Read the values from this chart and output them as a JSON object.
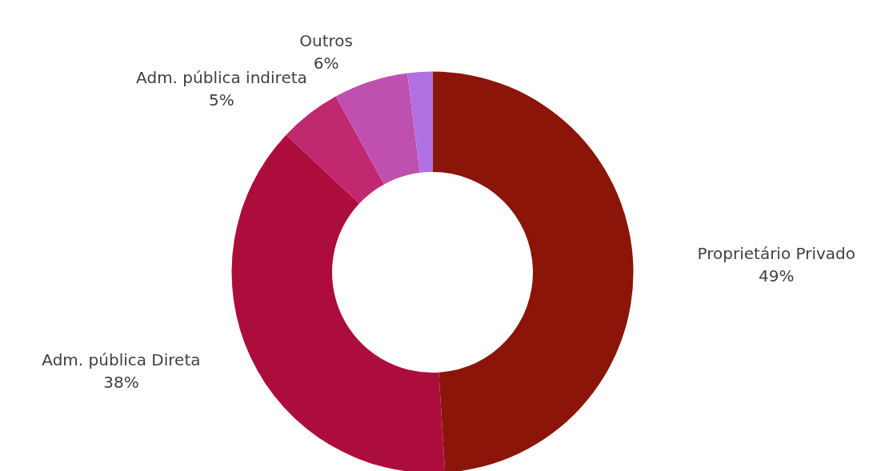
{
  "chart_data": {
    "type": "donut",
    "categories": [
      "Proprietário Privado",
      "Adm. pública Direta",
      "Adm. pública indireta",
      "Outros",
      null
    ],
    "values": [
      49,
      38,
      5,
      6,
      2
    ],
    "colors": [
      "#8b1509",
      "#ad0d3c",
      "#c02870",
      "#c050b0",
      "#b070e0"
    ],
    "value_labels": [
      "49%",
      "38%",
      "5%",
      "6%",
      null
    ]
  }
}
